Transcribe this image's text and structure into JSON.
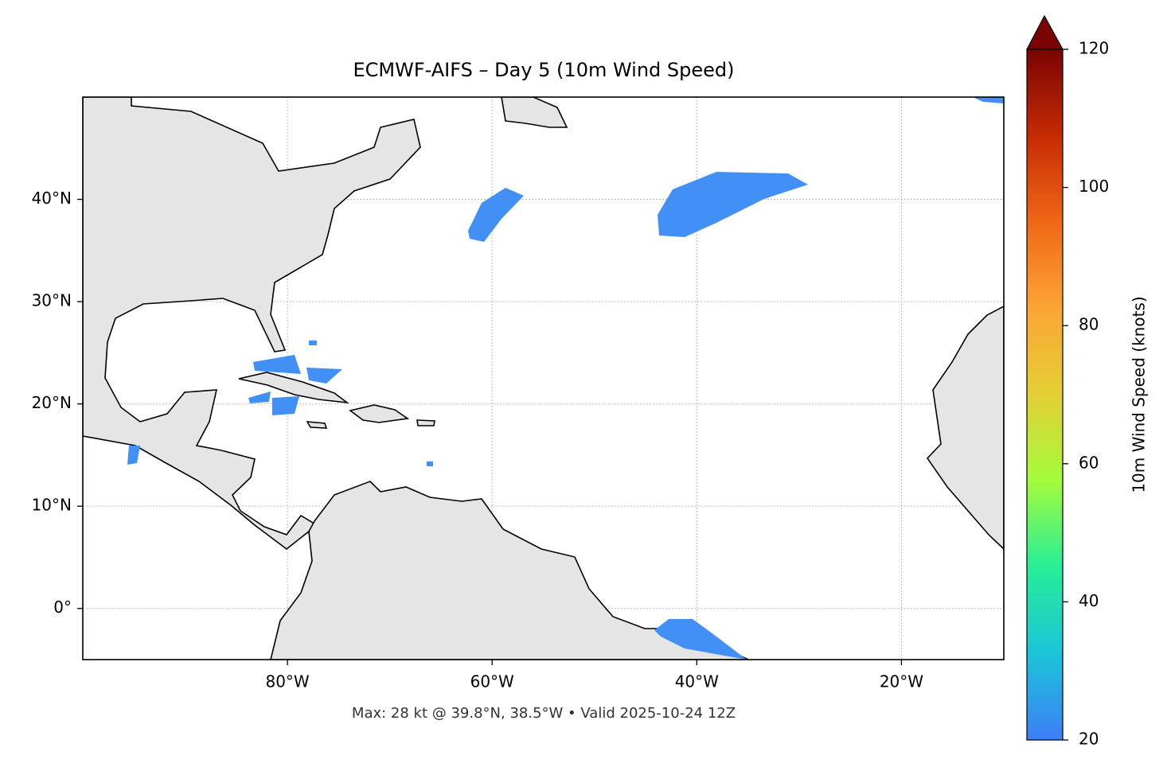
{
  "map": {
    "title": "ECMWF-AIFS – Day 5 (10m Wind Speed)",
    "footer": "Max: 28 kt @ 39.8°N, 38.5°W • Valid 2025-10-24 12Z",
    "xlim": [
      -100,
      -10
    ],
    "ylim": [
      -5,
      50
    ],
    "xticks": [
      {
        "value": -80,
        "label": "80°W"
      },
      {
        "value": -60,
        "label": "60°W"
      },
      {
        "value": -40,
        "label": "40°W"
      },
      {
        "value": -20,
        "label": "20°W"
      }
    ],
    "yticks": [
      {
        "value": 0,
        "label": "0°"
      },
      {
        "value": 10,
        "label": "10°N"
      },
      {
        "value": 20,
        "label": "20°N"
      },
      {
        "value": 30,
        "label": "30°N"
      },
      {
        "value": 40,
        "label": "40°N"
      }
    ],
    "grid": true,
    "colorbar": {
      "label": "10m Wind Speed (knots)",
      "lim": [
        20,
        120
      ],
      "ticks": [
        20,
        40,
        60,
        80,
        100,
        120
      ],
      "colors": [
        "#3e7ef8",
        "#1bc4d8",
        "#26ee98",
        "#a3fb3c",
        "#e4cf35",
        "#fca535",
        "#f06716",
        "#c52b04",
        "#7a0403"
      ]
    }
  }
}
